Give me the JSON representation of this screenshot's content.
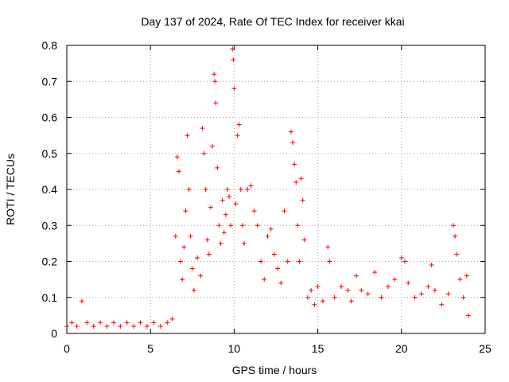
{
  "chart_data": {
    "type": "scatter",
    "title": "Day 137 of 2024, Rate Of TEC Index for receiver kkai",
    "xlabel": "GPS time / hours",
    "ylabel": "ROTI / TECUs",
    "xlim": [
      0,
      25
    ],
    "ylim": [
      0,
      0.8
    ],
    "xticks": [
      "0",
      "5",
      "10",
      "15",
      "20",
      "25"
    ],
    "yticks": [
      "0",
      "0.1",
      "0.2",
      "0.3",
      "0.4",
      "0.5",
      "0.6",
      "0.7",
      "0.8"
    ],
    "grid": true,
    "marker": "plus",
    "color": "#ff0000",
    "series": [
      {
        "points": [
          [
            0.0,
            0.02
          ],
          [
            0.3,
            0.03
          ],
          [
            0.6,
            0.02
          ],
          [
            0.9,
            0.09
          ],
          [
            1.2,
            0.03
          ],
          [
            1.6,
            0.02
          ],
          [
            2.0,
            0.03
          ],
          [
            2.4,
            0.02
          ],
          [
            2.8,
            0.03
          ],
          [
            3.2,
            0.02
          ],
          [
            3.6,
            0.03
          ],
          [
            4.0,
            0.02
          ],
          [
            4.4,
            0.03
          ],
          [
            4.8,
            0.02
          ],
          [
            5.2,
            0.03
          ],
          [
            5.6,
            0.02
          ],
          [
            6.0,
            0.03
          ],
          [
            6.3,
            0.04
          ],
          [
            6.5,
            0.27
          ],
          [
            6.6,
            0.49
          ],
          [
            6.7,
            0.45
          ],
          [
            6.8,
            0.2
          ],
          [
            6.9,
            0.15
          ],
          [
            7.0,
            0.24
          ],
          [
            7.1,
            0.34
          ],
          [
            7.2,
            0.55
          ],
          [
            7.3,
            0.4
          ],
          [
            7.4,
            0.27
          ],
          [
            7.5,
            0.18
          ],
          [
            7.6,
            0.12
          ],
          [
            7.8,
            0.21
          ],
          [
            8.0,
            0.16
          ],
          [
            8.1,
            0.57
          ],
          [
            8.2,
            0.5
          ],
          [
            8.3,
            0.4
          ],
          [
            8.4,
            0.26
          ],
          [
            8.5,
            0.22
          ],
          [
            8.6,
            0.35
          ],
          [
            8.7,
            0.52
          ],
          [
            8.8,
            0.72
          ],
          [
            8.85,
            0.7
          ],
          [
            8.9,
            0.64
          ],
          [
            9.0,
            0.46
          ],
          [
            9.1,
            0.3
          ],
          [
            9.2,
            0.25
          ],
          [
            9.3,
            0.37
          ],
          [
            9.4,
            0.28
          ],
          [
            9.5,
            0.33
          ],
          [
            9.6,
            0.4
          ],
          [
            9.7,
            0.38
          ],
          [
            9.8,
            0.3
          ],
          [
            9.9,
            0.79
          ],
          [
            9.95,
            0.76
          ],
          [
            10.0,
            0.68
          ],
          [
            10.1,
            0.36
          ],
          [
            10.2,
            0.55
          ],
          [
            10.3,
            0.58
          ],
          [
            10.4,
            0.4
          ],
          [
            10.5,
            0.3
          ],
          [
            10.6,
            0.25
          ],
          [
            10.8,
            0.4
          ],
          [
            11.0,
            0.41
          ],
          [
            11.2,
            0.34
          ],
          [
            11.4,
            0.3
          ],
          [
            11.6,
            0.2
          ],
          [
            11.8,
            0.15
          ],
          [
            12.0,
            0.27
          ],
          [
            12.2,
            0.29
          ],
          [
            12.4,
            0.22
          ],
          [
            12.6,
            0.18
          ],
          [
            12.8,
            0.14
          ],
          [
            13.0,
            0.34
          ],
          [
            13.2,
            0.2
          ],
          [
            13.4,
            0.56
          ],
          [
            13.5,
            0.53
          ],
          [
            13.6,
            0.47
          ],
          [
            13.7,
            0.42
          ],
          [
            13.8,
            0.3
          ],
          [
            13.9,
            0.2
          ],
          [
            14.0,
            0.43
          ],
          [
            14.1,
            0.37
          ],
          [
            14.2,
            0.26
          ],
          [
            14.4,
            0.1
          ],
          [
            14.6,
            0.12
          ],
          [
            14.8,
            0.08
          ],
          [
            15.0,
            0.13
          ],
          [
            15.3,
            0.09
          ],
          [
            15.6,
            0.24
          ],
          [
            15.7,
            0.2
          ],
          [
            16.0,
            0.1
          ],
          [
            16.4,
            0.13
          ],
          [
            16.8,
            0.12
          ],
          [
            17.0,
            0.09
          ],
          [
            17.3,
            0.16
          ],
          [
            17.6,
            0.12
          ],
          [
            18.0,
            0.11
          ],
          [
            18.4,
            0.17
          ],
          [
            18.8,
            0.1
          ],
          [
            19.2,
            0.13
          ],
          [
            19.6,
            0.15
          ],
          [
            20.0,
            0.21
          ],
          [
            20.2,
            0.2
          ],
          [
            20.4,
            0.14
          ],
          [
            20.8,
            0.1
          ],
          [
            21.2,
            0.11
          ],
          [
            21.6,
            0.13
          ],
          [
            21.8,
            0.19
          ],
          [
            22.0,
            0.12
          ],
          [
            22.4,
            0.08
          ],
          [
            22.8,
            0.11
          ],
          [
            23.1,
            0.3
          ],
          [
            23.2,
            0.27
          ],
          [
            23.3,
            0.22
          ],
          [
            23.5,
            0.15
          ],
          [
            23.7,
            0.1
          ],
          [
            23.9,
            0.16
          ],
          [
            24.0,
            0.05
          ]
        ]
      }
    ]
  }
}
